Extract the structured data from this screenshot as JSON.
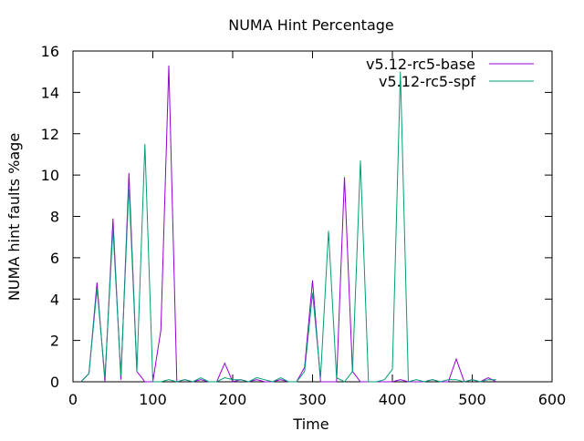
{
  "chart_data": {
    "type": "line",
    "title": "NUMA Hint Percentage",
    "xlabel": "Time",
    "ylabel": "NUMA hint faults %age",
    "xlim": [
      0,
      600
    ],
    "ylim": [
      0,
      16
    ],
    "xticks": [
      0,
      100,
      200,
      300,
      400,
      500,
      600
    ],
    "yticks": [
      0,
      2,
      4,
      6,
      8,
      10,
      12,
      14,
      16
    ],
    "grid": false,
    "legend_position": "top-right",
    "x": [
      10,
      20,
      30,
      40,
      50,
      60,
      70,
      80,
      90,
      100,
      110,
      120,
      130,
      140,
      150,
      160,
      170,
      180,
      190,
      200,
      210,
      220,
      230,
      240,
      250,
      260,
      270,
      280,
      290,
      300,
      310,
      320,
      330,
      340,
      350,
      360,
      370,
      380,
      390,
      400,
      410,
      420,
      430,
      440,
      450,
      460,
      470,
      480,
      490,
      500,
      510,
      520,
      530
    ],
    "series": [
      {
        "name": "v5.12-rc5-base",
        "color": "#9400d3",
        "values": [
          0,
          0.4,
          4.8,
          0,
          7.9,
          0.1,
          10.1,
          0.5,
          0,
          0,
          2.5,
          15.3,
          0,
          0.1,
          0,
          0.1,
          0,
          0,
          0.9,
          0,
          0.1,
          0,
          0.1,
          0,
          0,
          0.1,
          0,
          0,
          0.7,
          4.9,
          0,
          0,
          0,
          9.9,
          0.5,
          0,
          0,
          0,
          0,
          0,
          0.1,
          0,
          0,
          0,
          0.1,
          0,
          0,
          1.1,
          0,
          0.1,
          0,
          0.2,
          0
        ]
      },
      {
        "name": "v5.12-rc5-spf",
        "color": "#009e73",
        "values": [
          0,
          0.4,
          4.5,
          0.2,
          7.4,
          0.3,
          9.5,
          0.5,
          11.5,
          0,
          0,
          0.1,
          0,
          0.1,
          0,
          0.2,
          0,
          0,
          0.2,
          0.1,
          0.1,
          0,
          0.2,
          0.1,
          0,
          0.2,
          0,
          0,
          0.5,
          4.3,
          0.2,
          7.3,
          0.2,
          0,
          0.5,
          10.7,
          0,
          0,
          0.1,
          0.6,
          15.0,
          0,
          0.1,
          0,
          0.1,
          0,
          0.1,
          0.1,
          0,
          0.1,
          0,
          0.1,
          0.1
        ]
      }
    ]
  }
}
